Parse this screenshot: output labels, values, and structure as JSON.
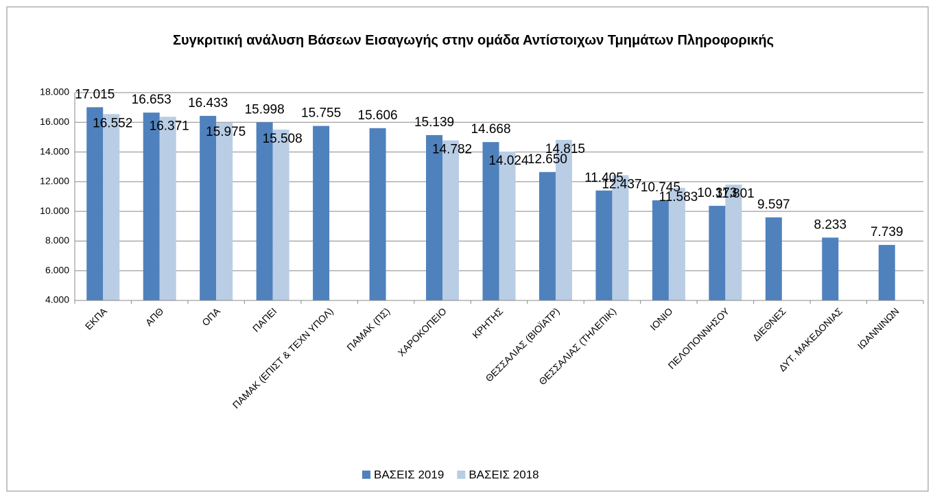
{
  "chart_data": {
    "type": "bar",
    "title": "Συγκριτική ανάλυση Βάσεων Εισαγωγής στην ομάδα Αντίστοιχων Τμημάτων Πληροφορικής",
    "categories": [
      "ΕΚΠΑ",
      "ΑΠΘ",
      "ΟΠΑ",
      "ΠΑΠΕΙ",
      "ΠΑΜΑΚ (ΕΠΙΣΤ & ΤΕΧΝ ΥΠΟΛ)",
      "ΠΑΜΑΚ (ΠΣ)",
      "ΧΑΡΟΚΟΠΕΙΟ",
      "ΚΡΗΤΗΣ",
      "ΘΕΣΣΑΛΙΑΣ (ΒΙΟΪΑΤΡ)",
      "ΘΕΣΣΑΛΙΑΣ (ΤΗΛΕΠΙΚ)",
      "ΙΟΝΙΟ",
      "ΠΕΛΟΠΟΝΝΗΣΟΥ",
      "ΔΙΕΘΝΕΣ",
      "ΔΥΤ. ΜΑΚΕΔΟΝΙΑΣ",
      "ΙΩΑΝΝΙΝΩΝ"
    ],
    "series": [
      {
        "name": "ΒΑΣΕΙΣ 2019",
        "color": "#4f81bd",
        "values": [
          17015,
          16653,
          16433,
          15998,
          15755,
          15606,
          15139,
          14668,
          12650,
          11405,
          10745,
          10373,
          9597,
          8233,
          7739
        ],
        "value_labels": [
          "17.015",
          "16.653",
          "16.433",
          "15.998",
          "15.755",
          "15.606",
          "15.139",
          "14.668",
          "12.650",
          "11.405",
          "10.745",
          "10.373",
          "9.597",
          "8.233",
          "7.739"
        ]
      },
      {
        "name": "ΒΑΣΕΙΣ 2018",
        "color": "#b9cde5",
        "values": [
          16552,
          16371,
          15975,
          15508,
          null,
          null,
          14782,
          14024,
          14815,
          12437,
          11583,
          11801,
          null,
          null,
          null
        ],
        "value_labels": [
          "16.552",
          "16.371",
          "15.975",
          "15.508",
          null,
          null,
          "14.782",
          "14.024",
          "14.815",
          "12.437",
          "11.583",
          "11.801",
          null,
          null,
          null
        ]
      }
    ],
    "ylim": [
      4000,
      18000
    ],
    "yticks": [
      {
        "value": 4000,
        "label": "4.000"
      },
      {
        "value": 6000,
        "label": "6.000"
      },
      {
        "value": 8000,
        "label": "8.000"
      },
      {
        "value": 10000,
        "label": "10.000"
      },
      {
        "value": 12000,
        "label": "12.000"
      },
      {
        "value": 14000,
        "label": "14.000"
      },
      {
        "value": 16000,
        "label": "16.000"
      },
      {
        "value": 18000,
        "label": "18.000"
      }
    ],
    "grid": true,
    "legend": "bottom"
  }
}
